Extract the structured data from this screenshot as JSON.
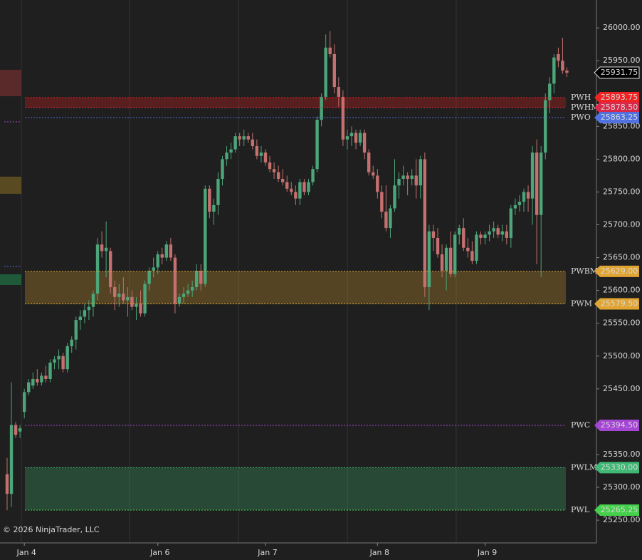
{
  "chart_data": {
    "type": "candlestick",
    "copyright": "© 2026 NinjaTrader, LLC",
    "up_color": "#4da57a",
    "down_color": "#c4706f",
    "xlim": [
      -1.65,
      136.86
    ],
    "xticks": [
      {
        "value": 4,
        "label": "Jan 4"
      },
      {
        "value": 35,
        "label": "Jan 6"
      },
      {
        "value": 60,
        "label": "Jan 7"
      },
      {
        "value": 86,
        "label": "Jan 8"
      },
      {
        "value": 111,
        "label": "Jan 9"
      }
    ],
    "ylim": [
      25217.5,
      26042.5
    ],
    "yticks": [
      {
        "value": 26000,
        "label": "26000.00"
      },
      {
        "value": 25950,
        "label": "25950.00"
      },
      {
        "value": 25850,
        "label": "25850.00"
      },
      {
        "value": 25800,
        "label": "25800.00"
      },
      {
        "value": 25750,
        "label": "25750.00"
      },
      {
        "value": 25700,
        "label": "25700.00"
      },
      {
        "value": 25650,
        "label": "25650.00"
      },
      {
        "value": 25600,
        "label": "25600.00"
      },
      {
        "value": 25550,
        "label": "25550.00"
      },
      {
        "value": 25500,
        "label": "25500.00"
      },
      {
        "value": 25450,
        "label": "25450.00"
      },
      {
        "value": 25350,
        "label": "25350.00"
      },
      {
        "value": 25300,
        "label": "25300.00"
      },
      {
        "value": 25250,
        "label": "25250.00"
      }
    ],
    "open": [
      25320,
      25290,
      25395,
      25385,
      25415,
      25445,
      25455,
      25465,
      25460,
      25470,
      25465,
      25490,
      25495,
      25500,
      25480,
      25515,
      25525,
      25555,
      25560,
      25570,
      25575,
      25595,
      25670,
      25660,
      25660,
      25605,
      25590,
      25595,
      25585,
      25590,
      25575,
      25580,
      25565,
      25610,
      25630,
      25635,
      25655,
      25650,
      25670,
      25650,
      25580,
      25590,
      25595,
      25600,
      25605,
      25630,
      25610,
      25755,
      25720,
      25730,
      25770,
      25800,
      25810,
      25815,
      25835,
      25830,
      25835,
      25830,
      25820,
      25805,
      25810,
      25795,
      25785,
      25780,
      25770,
      25765,
      25755,
      25750,
      25740,
      25765,
      25750,
      25765,
      25785,
      25860,
      25895,
      25970,
      25960,
      25910,
      25895,
      25830,
      25835,
      25840,
      25825,
      25840,
      25810,
      25780,
      25775,
      25750,
      25720,
      25695,
      25725,
      25760,
      25770,
      25775,
      25770,
      25775,
      25760,
      25800,
      25605,
      25690,
      25680,
      25655,
      25630,
      25665,
      25625,
      25685,
      25695,
      25665,
      25660,
      25645,
      25685,
      25680,
      25685,
      25690,
      25695,
      25685,
      25690,
      25680,
      25725,
      25730,
      25735,
      25750,
      25740,
      25810,
      25715,
      25810,
      25890,
      25915,
      25960,
      25950,
      25935
    ],
    "high": [
      25345,
      25460,
      25400,
      25395,
      25450,
      25465,
      25475,
      25480,
      25475,
      25485,
      25495,
      25500,
      25510,
      25505,
      25520,
      25530,
      25560,
      25570,
      25580,
      25585,
      25600,
      25680,
      25690,
      25705,
      25665,
      25615,
      25610,
      25620,
      25605,
      25600,
      25590,
      25600,
      25615,
      25635,
      25650,
      25660,
      25665,
      25675,
      25680,
      25655,
      25595,
      25605,
      25610,
      25615,
      25640,
      25640,
      25760,
      25760,
      25740,
      25780,
      25805,
      25820,
      25825,
      25840,
      25840,
      25845,
      25840,
      25840,
      25830,
      25820,
      25815,
      25805,
      25795,
      25790,
      25785,
      25775,
      25765,
      25760,
      25770,
      25770,
      25770,
      25790,
      25865,
      25900,
      25990,
      25995,
      25975,
      25925,
      25905,
      25845,
      25850,
      25845,
      25845,
      25845,
      25815,
      25790,
      25785,
      25760,
      25760,
      25730,
      25800,
      25780,
      25790,
      25780,
      25785,
      25800,
      25805,
      25810,
      25700,
      25700,
      25695,
      25670,
      25670,
      25690,
      25690,
      25700,
      25710,
      25680,
      25675,
      25690,
      25690,
      25690,
      25700,
      25705,
      25700,
      25700,
      25700,
      25730,
      25740,
      25745,
      25755,
      25760,
      25820,
      25830,
      25820,
      25900,
      25925,
      25960,
      25970,
      25985,
      25940
    ],
    "low": [
      25265,
      25270,
      25375,
      25375,
      25405,
      25440,
      25450,
      25455,
      25455,
      25460,
      25460,
      25480,
      25480,
      25475,
      25475,
      25505,
      25510,
      25540,
      25550,
      25555,
      25560,
      25585,
      25650,
      25620,
      25595,
      25570,
      25575,
      25580,
      25560,
      25570,
      25555,
      25560,
      25560,
      25600,
      25620,
      25625,
      25640,
      25645,
      25645,
      25565,
      25575,
      25580,
      25590,
      25590,
      25600,
      25600,
      25605,
      25710,
      25700,
      25715,
      25760,
      25790,
      25800,
      25810,
      25820,
      25820,
      25825,
      25815,
      25800,
      25795,
      25790,
      25780,
      25770,
      25765,
      25760,
      25750,
      25745,
      25730,
      25730,
      25745,
      25745,
      25760,
      25780,
      25850,
      25890,
      25955,
      25900,
      25880,
      25820,
      25815,
      25820,
      25815,
      25820,
      25800,
      25775,
      25770,
      25740,
      25710,
      25690,
      25680,
      25720,
      25740,
      25760,
      25745,
      25760,
      25740,
      25740,
      25590,
      25570,
      25660,
      25650,
      25620,
      25600,
      25620,
      25620,
      25670,
      25660,
      25650,
      25640,
      25640,
      25670,
      25670,
      25675,
      25680,
      25680,
      25675,
      25670,
      25665,
      25715,
      25720,
      25720,
      25720,
      25700,
      25640,
      25620,
      25800,
      25870,
      25900,
      25940,
      25930,
      25925
    ],
    "close": [
      25290,
      25395,
      25380,
      25390,
      25445,
      25460,
      25465,
      25460,
      25470,
      25465,
      25490,
      25495,
      25500,
      25480,
      25515,
      25525,
      25555,
      25560,
      25570,
      25575,
      25595,
      25670,
      25660,
      25665,
      25605,
      25590,
      25595,
      25585,
      25590,
      25575,
      25580,
      25565,
      25610,
      25630,
      25635,
      25655,
      25650,
      25670,
      25650,
      25580,
      25590,
      25595,
      25600,
      25605,
      25630,
      25610,
      25755,
      25720,
      25730,
      25770,
      25800,
      25810,
      25815,
      25835,
      25830,
      25835,
      25830,
      25820,
      25805,
      25810,
      25795,
      25785,
      25780,
      25770,
      25765,
      25755,
      25750,
      25740,
      25765,
      25750,
      25765,
      25785,
      25860,
      25895,
      25970,
      25960,
      25910,
      25895,
      25830,
      25835,
      25840,
      25825,
      25840,
      25810,
      25780,
      25775,
      25750,
      25720,
      25695,
      25725,
      25760,
      25770,
      25775,
      25770,
      25775,
      25760,
      25800,
      25605,
      25690,
      25680,
      25655,
      25630,
      25665,
      25625,
      25685,
      25695,
      25665,
      25660,
      25645,
      25685,
      25680,
      25685,
      25690,
      25695,
      25685,
      25690,
      25680,
      25725,
      25730,
      25735,
      25750,
      25740,
      25810,
      25715,
      25810,
      25890,
      25915,
      25955,
      25950,
      25935,
      25931.75
    ],
    "current_price": {
      "value": 25931.75,
      "value_label": "25931.75"
    },
    "levels": [
      {
        "name": "PWH",
        "value": 25893.75,
        "value_label": "25893.75",
        "color": "#f02222"
      },
      {
        "name": "PWHM",
        "value": 25878.5,
        "value_label": "25878.50",
        "color": "#d8294a"
      },
      {
        "name": "PWO",
        "value": 25863.25,
        "value_label": "25863.25",
        "color": "#4f72e0"
      },
      {
        "name": "PWBM",
        "value": 25629,
        "value_label": "25629.00",
        "color": "#e0a432"
      },
      {
        "name": "PWM",
        "value": 25579.5,
        "value_label": "25579.50",
        "color": "#e0a432"
      },
      {
        "name": "PWC",
        "value": 25394.5,
        "value_label": "25394.50",
        "color": "#a445d4"
      },
      {
        "name": "PWLM",
        "value": 25330,
        "value_label": "25330.00",
        "color": "#3fb874"
      },
      {
        "name": "PWL",
        "value": 25265.25,
        "value_label": "25265.25",
        "color": "#44d04a"
      }
    ]
  }
}
